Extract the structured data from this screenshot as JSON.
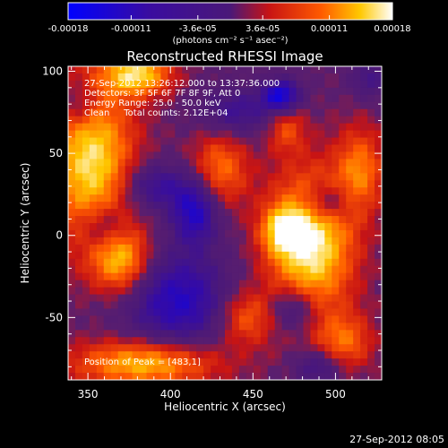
{
  "chart_data": {
    "type": "heatmap",
    "title": "Reconstructed RHESSI Image",
    "xlabel": "Heliocentric X (arcsec)",
    "ylabel": "Heliocentric Y (arcsec)",
    "xlim": [
      338,
      528
    ],
    "ylim": [
      -88,
      103
    ],
    "x_ticks": [
      350,
      400,
      450,
      500
    ],
    "y_ticks": [
      -50,
      0,
      50,
      100
    ],
    "colorbar": {
      "label": "(photons cm⁻² s⁻¹ asec⁻²)",
      "ticks": [
        "-0.00018",
        "-0.00011",
        "-3.6e-05",
        "3.6e-05",
        "0.00011",
        "0.00018"
      ],
      "min": -0.00018,
      "max": 0.00018
    },
    "annotations": [
      "27-Sep-2012 13:26:12.000 to 13:37:36.000",
      "Detectors: 3F 5F 6F 7F 8F 9F, Att 0",
      "Energy Range: 25.0 - 50.0 keV",
      "Clean     Total counts: 2.12E+04"
    ],
    "peak_label": "Position of Peak = [483,1]",
    "timestamp": "27-Sep-2012 08:05",
    "blobs": [
      {
        "x": 485,
        "y": -5,
        "sx": 18,
        "sy": 30,
        "a": 1.0
      },
      {
        "x": 468,
        "y": 3,
        "sx": 9,
        "sy": 10,
        "a": 0.6
      },
      {
        "x": 352,
        "y": 45,
        "sx": 18,
        "sy": 35,
        "a": 0.9
      },
      {
        "x": 380,
        "y": 98,
        "sx": 14,
        "sy": 9,
        "a": 0.85
      },
      {
        "x": 370,
        "y": -15,
        "sx": 12,
        "sy": 14,
        "a": 0.75
      },
      {
        "x": 385,
        "y": -78,
        "sx": 30,
        "sy": 10,
        "a": 0.8
      },
      {
        "x": 430,
        "y": 40,
        "sx": 12,
        "sy": 16,
        "a": 0.55
      },
      {
        "x": 445,
        "y": -50,
        "sx": 12,
        "sy": 12,
        "a": 0.5
      },
      {
        "x": 515,
        "y": 40,
        "sx": 10,
        "sy": 18,
        "a": 0.55
      },
      {
        "x": 505,
        "y": -65,
        "sx": 12,
        "sy": 12,
        "a": 0.5
      },
      {
        "x": 470,
        "y": 65,
        "sx": 8,
        "sy": 10,
        "a": 0.4
      },
      {
        "x": 467,
        "y": 85,
        "sx": 8,
        "sy": 7,
        "a": -0.85
      },
      {
        "x": 405,
        "y": -40,
        "sx": 22,
        "sy": 20,
        "a": -0.7
      },
      {
        "x": 415,
        "y": 15,
        "sx": 10,
        "sy": 14,
        "a": -0.75
      },
      {
        "x": 390,
        "y": 30,
        "sx": 14,
        "sy": 10,
        "a": -0.5
      },
      {
        "x": 360,
        "y": 5,
        "sx": 10,
        "sy": 10,
        "a": -0.45
      },
      {
        "x": 440,
        "y": 75,
        "sx": 15,
        "sy": 10,
        "a": -0.45
      },
      {
        "x": 495,
        "y": 20,
        "sx": 10,
        "sy": 8,
        "a": -0.5
      },
      {
        "x": 475,
        "y": -45,
        "sx": 10,
        "sy": 10,
        "a": -0.5
      },
      {
        "x": 490,
        "y": -80,
        "sx": 10,
        "sy": 8,
        "a": -0.45
      },
      {
        "x": 520,
        "y": 95,
        "sx": 8,
        "sy": 8,
        "a": -0.35
      },
      {
        "x": 345,
        "y": 80,
        "sx": 8,
        "sy": 10,
        "a": -0.4
      }
    ]
  }
}
